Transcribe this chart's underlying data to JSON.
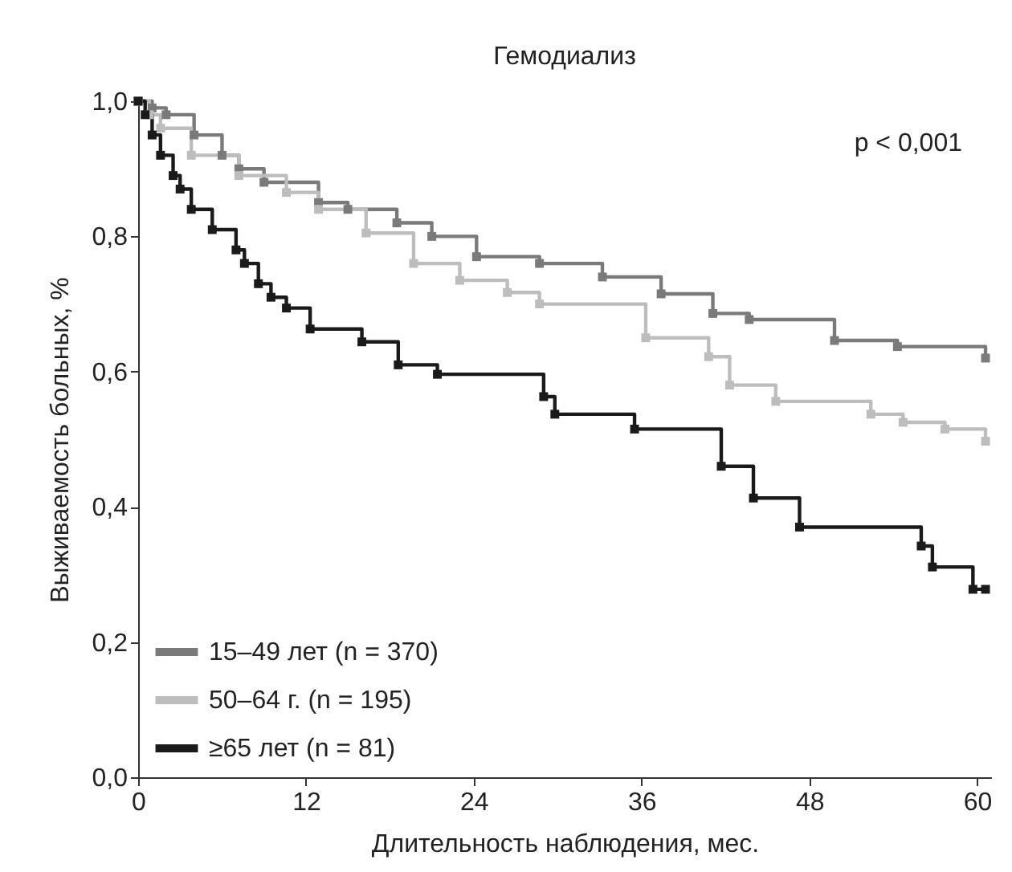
{
  "chart_data": {
    "type": "step",
    "title": "Гемодиализ",
    "xlabel": "Длительность наблюдения, мес.",
    "ylabel": "Выживаемость больных, %",
    "annotations": [
      "p < 0,001"
    ],
    "xlim": [
      0,
      61
    ],
    "xticks": [
      0,
      12,
      24,
      36,
      48,
      60
    ],
    "ylim": [
      0,
      1
    ],
    "yticks": [
      {
        "value": 0,
        "label": "0,0"
      },
      {
        "value": 0.2,
        "label": "0,2"
      },
      {
        "value": 0.4,
        "label": "0,4"
      },
      {
        "value": 0.6,
        "label": "0,6"
      },
      {
        "value": 0.8,
        "label": "0,8"
      },
      {
        "value": 1,
        "label": "1,0"
      }
    ],
    "legend": "bottom left",
    "marker": "square",
    "grid": false,
    "series": [
      {
        "name": "15–49 лет (n = 370)",
        "color": "#7a7a7a",
        "x": [
          0,
          1,
          2,
          4,
          6,
          7.2,
          9,
          12.9,
          15,
          18.5,
          21,
          24.2,
          28.7,
          33.2,
          37.4,
          41.1,
          43.7,
          49.8,
          54.3,
          60.6
        ],
        "values": [
          1,
          0.99,
          0.98,
          0.95,
          0.92,
          0.9,
          0.88,
          0.85,
          0.84,
          0.82,
          0.8,
          0.77,
          0.76,
          0.74,
          0.715,
          0.686,
          0.677,
          0.646,
          0.637,
          0.62
        ]
      },
      {
        "name": "50–64 г. (n = 195)",
        "color": "#bdbdbd",
        "x": [
          0,
          0.8,
          1.6,
          3.8,
          7.2,
          10.6,
          12.9,
          16.3,
          19.7,
          23,
          26.4,
          28.7,
          36.3,
          40.8,
          42.3,
          45.6,
          52.4,
          54.7,
          57.7,
          60.6
        ],
        "values": [
          1,
          0.98,
          0.96,
          0.92,
          0.89,
          0.865,
          0.84,
          0.805,
          0.76,
          0.735,
          0.717,
          0.7,
          0.65,
          0.622,
          0.58,
          0.556,
          0.537,
          0.525,
          0.515,
          0.497
        ]
      },
      {
        "name": "≥65 лет (n = 81)",
        "color": "#1a1a1a",
        "x": [
          0,
          0.5,
          1,
          1.6,
          2.5,
          3,
          3.8,
          5.3,
          7,
          7.6,
          8.6,
          9.5,
          10.6,
          12.3,
          16,
          18.6,
          21.4,
          29,
          29.8,
          35.5,
          41.7,
          44,
          47.3,
          56,
          56.8,
          59.7,
          60.6
        ],
        "values": [
          1,
          0.98,
          0.95,
          0.92,
          0.89,
          0.87,
          0.84,
          0.81,
          0.78,
          0.76,
          0.73,
          0.71,
          0.694,
          0.663,
          0.644,
          0.61,
          0.596,
          0.563,
          0.537,
          0.515,
          0.46,
          0.413,
          0.37,
          0.342,
          0.311,
          0.278,
          0.278
        ]
      }
    ]
  }
}
